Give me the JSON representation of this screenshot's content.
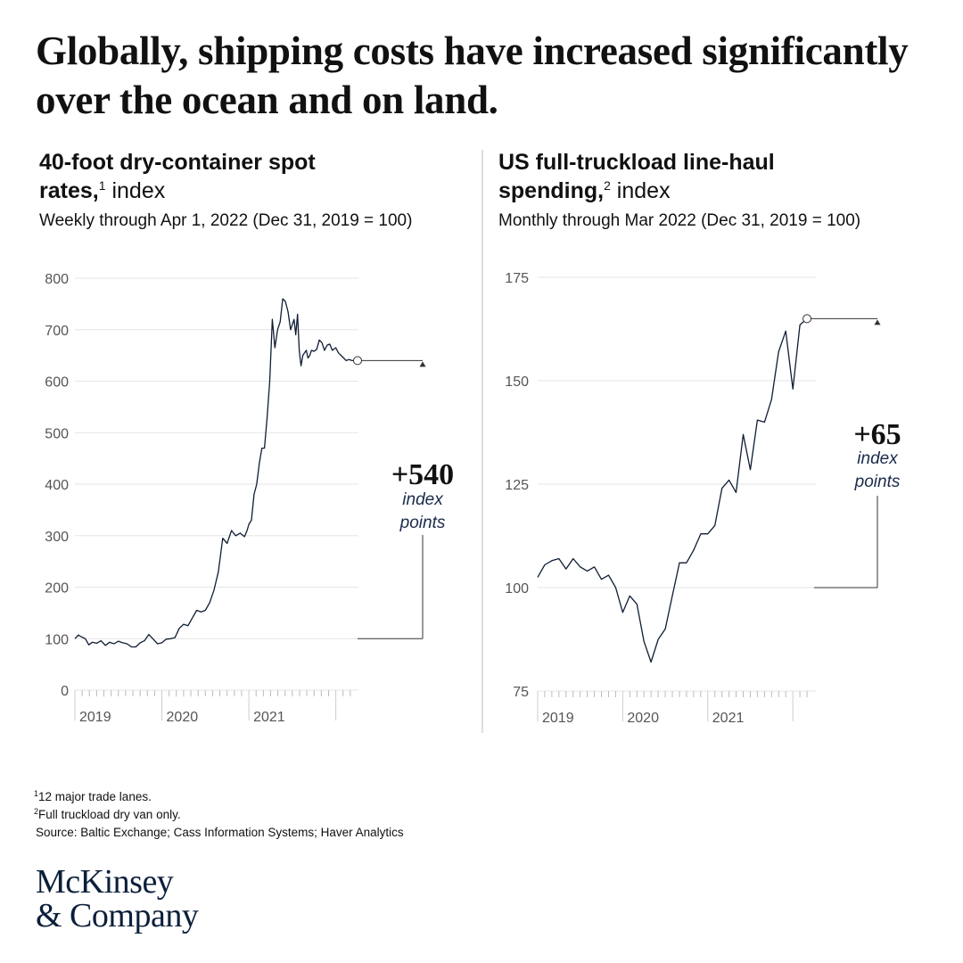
{
  "headline": "Globally, shipping costs have increased significantly over the ocean and on land.",
  "panels": {
    "left": {
      "title_bold_1": "40-foot dry-container spot",
      "title_bold_2": "rates,",
      "title_sup": "1",
      "title_rest": " index",
      "subtitle": "Weekly through Apr 1, 2022 (Dec 31, 2019 = 100)",
      "callout_value": "+540",
      "callout_unit_1": "index",
      "callout_unit_2": "points"
    },
    "right": {
      "title_bold_1": "US full-truckload line-haul",
      "title_bold_2": "spending,",
      "title_sup": "2",
      "title_rest": " index",
      "subtitle": "Monthly through Mar 2022 (Dec 31, 2019 = 100)",
      "callout_value": "+65",
      "callout_unit_1": "index",
      "callout_unit_2": "points"
    }
  },
  "chart_data": [
    {
      "type": "line",
      "title": "40-foot dry-container spot rates, index",
      "subtitle": "Weekly through Apr 1, 2022 (Dec 31, 2019 = 100)",
      "xlabel": "",
      "ylabel": "",
      "x_tick_labels": [
        "2019",
        "2020",
        "2021"
      ],
      "y_ticks": [
        0,
        100,
        200,
        300,
        400,
        500,
        600,
        700,
        800
      ],
      "ylim": [
        0,
        800
      ],
      "xlim": [
        2019.0,
        2022.25
      ],
      "grid": true,
      "series": [
        {
          "x": [
            2019.0,
            2019.04,
            2019.08,
            2019.12,
            2019.16,
            2019.2,
            2019.25,
            2019.3,
            2019.35,
            2019.4,
            2019.45,
            2019.5,
            2019.55,
            2019.6,
            2019.65,
            2019.7,
            2019.75,
            2019.8,
            2019.85,
            2019.9,
            2019.95,
            2020.0,
            2020.05,
            2020.1,
            2020.15,
            2020.2,
            2020.25,
            2020.3,
            2020.35,
            2020.4,
            2020.45,
            2020.5,
            2020.55,
            2020.6,
            2020.65,
            2020.7,
            2020.75,
            2020.8,
            2020.85,
            2020.9,
            2020.95,
            2020.98,
            2021.0,
            2021.03,
            2021.06,
            2021.09,
            2021.12,
            2021.15,
            2021.18,
            2021.21,
            2021.24,
            2021.27,
            2021.3,
            2021.33,
            2021.36,
            2021.39,
            2021.42,
            2021.45,
            2021.48,
            2021.5,
            2021.52,
            2021.54,
            2021.56,
            2021.58,
            2021.6,
            2021.62,
            2021.64,
            2021.66,
            2021.68,
            2021.7,
            2021.72,
            2021.75,
            2021.78,
            2021.81,
            2021.84,
            2021.87,
            2021.9,
            2021.93,
            2021.96,
            2022.0,
            2022.03,
            2022.06,
            2022.09,
            2022.12,
            2022.15,
            2022.19,
            2022.25
          ],
          "y": [
            100,
            107,
            103,
            100,
            88,
            93,
            91,
            96,
            87,
            93,
            90,
            95,
            92,
            90,
            84,
            84,
            92,
            96,
            108,
            99,
            90,
            92,
            99,
            100,
            102,
            120,
            128,
            125,
            140,
            155,
            152,
            155,
            170,
            195,
            230,
            295,
            285,
            310,
            300,
            305,
            298,
            310,
            322,
            330,
            380,
            400,
            440,
            470,
            470,
            530,
            600,
            720,
            665,
            700,
            715,
            760,
            755,
            735,
            700,
            710,
            720,
            690,
            730,
            660,
            630,
            650,
            655,
            660,
            645,
            650,
            660,
            658,
            662,
            680,
            675,
            660,
            670,
            672,
            660,
            665,
            655,
            650,
            645,
            640,
            642,
            640,
            640
          ]
        }
      ],
      "annotation": {
        "text": "+540",
        "unit": "index points"
      }
    },
    {
      "type": "line",
      "title": "US full-truckload line-haul spending, index",
      "subtitle": "Monthly through Mar 2022 (Dec 31, 2019 = 100)",
      "xlabel": "",
      "ylabel": "",
      "x_tick_labels": [
        "2019",
        "2020",
        "2021"
      ],
      "y_ticks": [
        75,
        100,
        125,
        150,
        175
      ],
      "ylim": [
        75,
        175
      ],
      "xlim": [
        2019.0,
        2022.25
      ],
      "grid": true,
      "series": [
        {
          "x": [
            2019.0,
            2019.083,
            2019.167,
            2019.25,
            2019.333,
            2019.417,
            2019.5,
            2019.583,
            2019.667,
            2019.75,
            2019.833,
            2019.917,
            2020.0,
            2020.083,
            2020.167,
            2020.25,
            2020.333,
            2020.417,
            2020.5,
            2020.583,
            2020.667,
            2020.75,
            2020.833,
            2020.917,
            2021.0,
            2021.083,
            2021.167,
            2021.25,
            2021.333,
            2021.417,
            2021.5,
            2021.583,
            2021.667,
            2021.75,
            2021.833,
            2021.917,
            2022.0,
            2022.083,
            2022.167
          ],
          "y": [
            102.5,
            105.5,
            106.5,
            107,
            104.5,
            107,
            105,
            104,
            105,
            102,
            103,
            100,
            94,
            98,
            96,
            87,
            82,
            87.5,
            90,
            98,
            106,
            106,
            109,
            113,
            113,
            115,
            124,
            126,
            123,
            137,
            128.5,
            140.5,
            140,
            145.5,
            157,
            162,
            148,
            163.5,
            165
          ]
        }
      ],
      "annotation": {
        "text": "+65",
        "unit": "index points"
      }
    }
  ],
  "footnotes": {
    "f1_mark": "1",
    "f1_text": "12 major trade lanes.",
    "f2_mark": "2",
    "f2_text": "Full truckload dry van only.",
    "source": "Source: Baltic Exchange; Cass Information Systems; Haver Analytics"
  },
  "logo": {
    "line1": "McKinsey",
    "line2": "& Company"
  }
}
